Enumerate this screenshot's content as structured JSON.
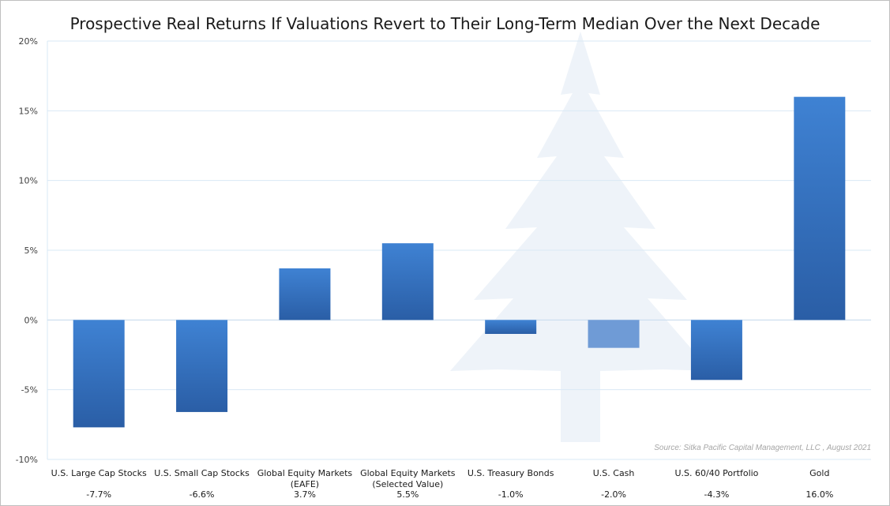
{
  "chart_data": {
    "type": "bar",
    "title": "Prospective Real Returns If Valuations Revert to Their Long-Term Median Over the Next Decade",
    "categories": [
      [
        "U.S. Large Cap Stocks"
      ],
      [
        "U.S. Small Cap Stocks"
      ],
      [
        "Global Equity Markets",
        "(EAFE)"
      ],
      [
        "Global Equity Markets",
        "(Selected Value)"
      ],
      [
        "U.S. Treasury Bonds"
      ],
      [
        "U.S. Cash"
      ],
      [
        "U.S. 60/40 Portfolio"
      ],
      [
        "Gold"
      ]
    ],
    "values": [
      -7.7,
      -6.6,
      3.7,
      5.5,
      -1.0,
      -2.0,
      -4.3,
      16.0
    ],
    "value_labels": [
      "-7.7%",
      "-6.6%",
      "3.7%",
      "5.5%",
      "-1.0%",
      "-2.0%",
      "-4.3%",
      "16.0%"
    ],
    "ylim": [
      -10,
      20
    ],
    "yticks": [
      -10,
      -5,
      0,
      5,
      10,
      15,
      20
    ],
    "ytick_labels": [
      "-10%",
      "-5%",
      "0%",
      "5%",
      "10%",
      "15%",
      "20%"
    ],
    "grid": true,
    "colors": {
      "bar_top": "#3d7fd0",
      "bar_bottom": "#2a5fa8",
      "cash_bar": "#6f9bd6",
      "grid": "#d9e8f5",
      "watermark": "#eef3f9"
    },
    "source": "Source:  Sitka Pacific Capital Management, LLC , August 2021"
  }
}
